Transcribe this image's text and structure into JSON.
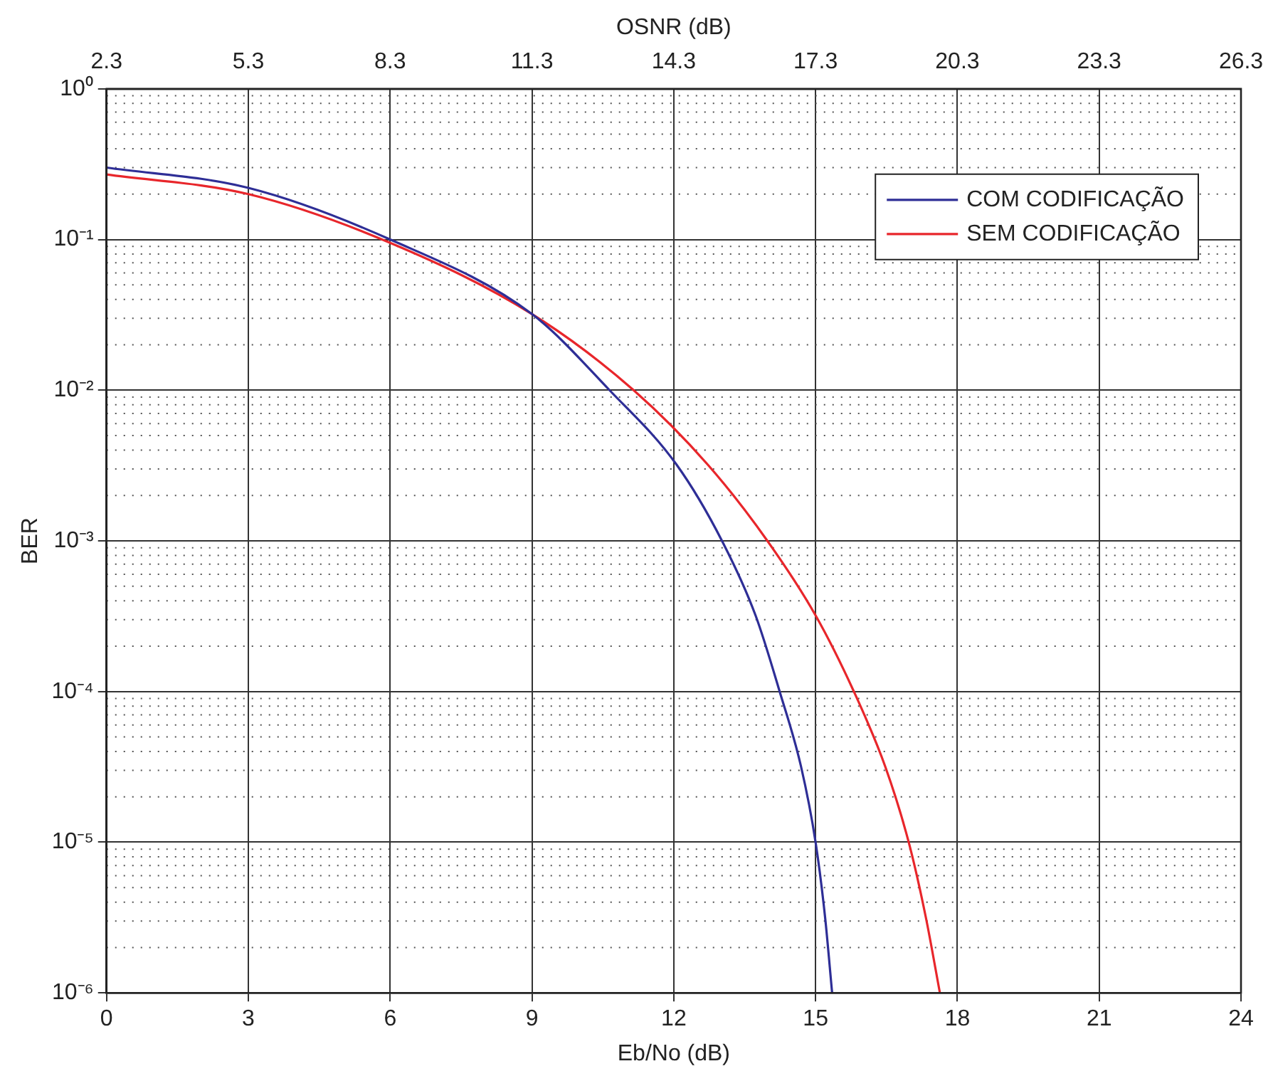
{
  "chart_data": {
    "type": "line",
    "xlabel": "Eb/No (dB)",
    "x2label": "OSNR (dB)",
    "ylabel": "BER",
    "log": "y",
    "grid": true,
    "line_style": "solid",
    "marker": "none",
    "legend": "top right",
    "xlim": [
      0,
      24
    ],
    "xticks": [
      0,
      3,
      6,
      9,
      12,
      15,
      18,
      21,
      24
    ],
    "x2lim": [
      2.3,
      26.3
    ],
    "x2ticks": [
      {
        "value": 2.3,
        "label": "2.3"
      },
      {
        "value": 5.3,
        "label": "5.3"
      },
      {
        "value": 8.3,
        "label": "8.3"
      },
      {
        "value": 11.3,
        "label": "11.3"
      },
      {
        "value": 14.3,
        "label": "14.3"
      },
      {
        "value": 17.3,
        "label": "17.3"
      },
      {
        "value": 20.3,
        "label": "20.3"
      },
      {
        "value": 23.3,
        "label": "23.3"
      },
      {
        "value": 26.3,
        "label": "26.3"
      }
    ],
    "ylim": [
      1e-06,
      1
    ],
    "yticks": [
      {
        "value": 1,
        "label": "10⁰"
      },
      {
        "value": 0.1,
        "label": "10⁻¹"
      },
      {
        "value": 0.01,
        "label": "10⁻²"
      },
      {
        "value": 0.001,
        "label": "10⁻³"
      },
      {
        "value": 0.0001,
        "label": "10⁻⁴"
      },
      {
        "value": 1e-05,
        "label": "10⁻⁵"
      },
      {
        "value": 1e-06,
        "label": "10⁻⁶"
      }
    ],
    "series": [
      {
        "name": "COM CODIFICAÇÃO",
        "color": "#2e2e96",
        "x": [
          0,
          3,
          6,
          9,
          10.64,
          12.06,
          13.02,
          13.73,
          14.24,
          14.69,
          15.0,
          15.2,
          15.35
        ],
        "values": [
          0.3,
          0.22,
          0.1,
          0.032,
          0.01,
          0.0032,
          0.001,
          0.00032,
          0.0001,
          3.2e-05,
          1e-05,
          3.2e-06,
          1e-06
        ]
      },
      {
        "name": "SEM CODIFICAÇÃO",
        "color": "#e8262b",
        "x": [
          0,
          3,
          6,
          9,
          11.15,
          12.72,
          13.98,
          15.0,
          15.81,
          16.47,
          16.97,
          17.33,
          17.63
        ],
        "values": [
          0.27,
          0.2,
          0.095,
          0.032,
          0.01,
          0.0032,
          0.001,
          0.00032,
          0.0001,
          3.2e-05,
          1e-05,
          3.2e-06,
          1e-06
        ]
      }
    ]
  }
}
